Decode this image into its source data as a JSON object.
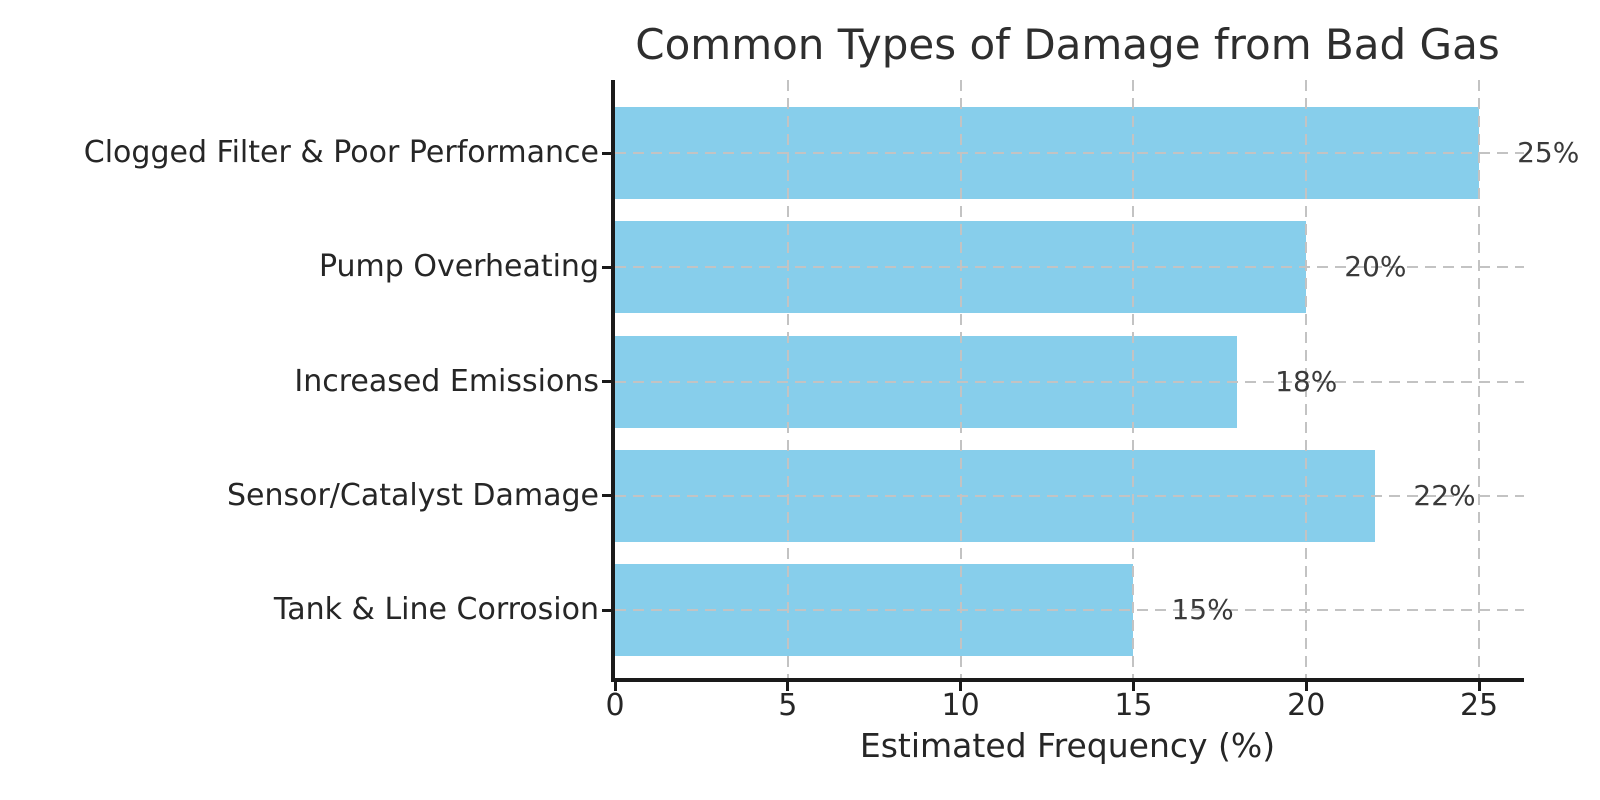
{
  "chart_data": {
    "type": "bar",
    "orientation": "horizontal",
    "title": "Common Types of Damage from Bad Gas",
    "xlabel": "Estimated Frequency (%)",
    "categories": [
      "Clogged Filter & Poor Performance",
      "Pump Overheating",
      "Increased Emissions",
      "Sensor/Catalyst Damage",
      "Tank & Line Corrosion"
    ],
    "values": [
      25,
      20,
      18,
      22,
      15
    ],
    "value_labels": [
      "25%",
      "20%",
      "18%",
      "22%",
      "15%"
    ],
    "xticks": [
      0,
      5,
      10,
      15,
      20,
      25
    ],
    "xtick_labels": [
      "0",
      "5",
      "10",
      "15",
      "20",
      "25"
    ],
    "xlim": [
      0,
      26.3
    ],
    "grid": "dashed",
    "legend": null,
    "colors": {
      "bar_fill": "#87CEEB",
      "grid_line": "#c3c3c3",
      "axis_spine": "#1a1a1a",
      "text": "#262626",
      "annotation_text": "#3a3a3a"
    }
  }
}
